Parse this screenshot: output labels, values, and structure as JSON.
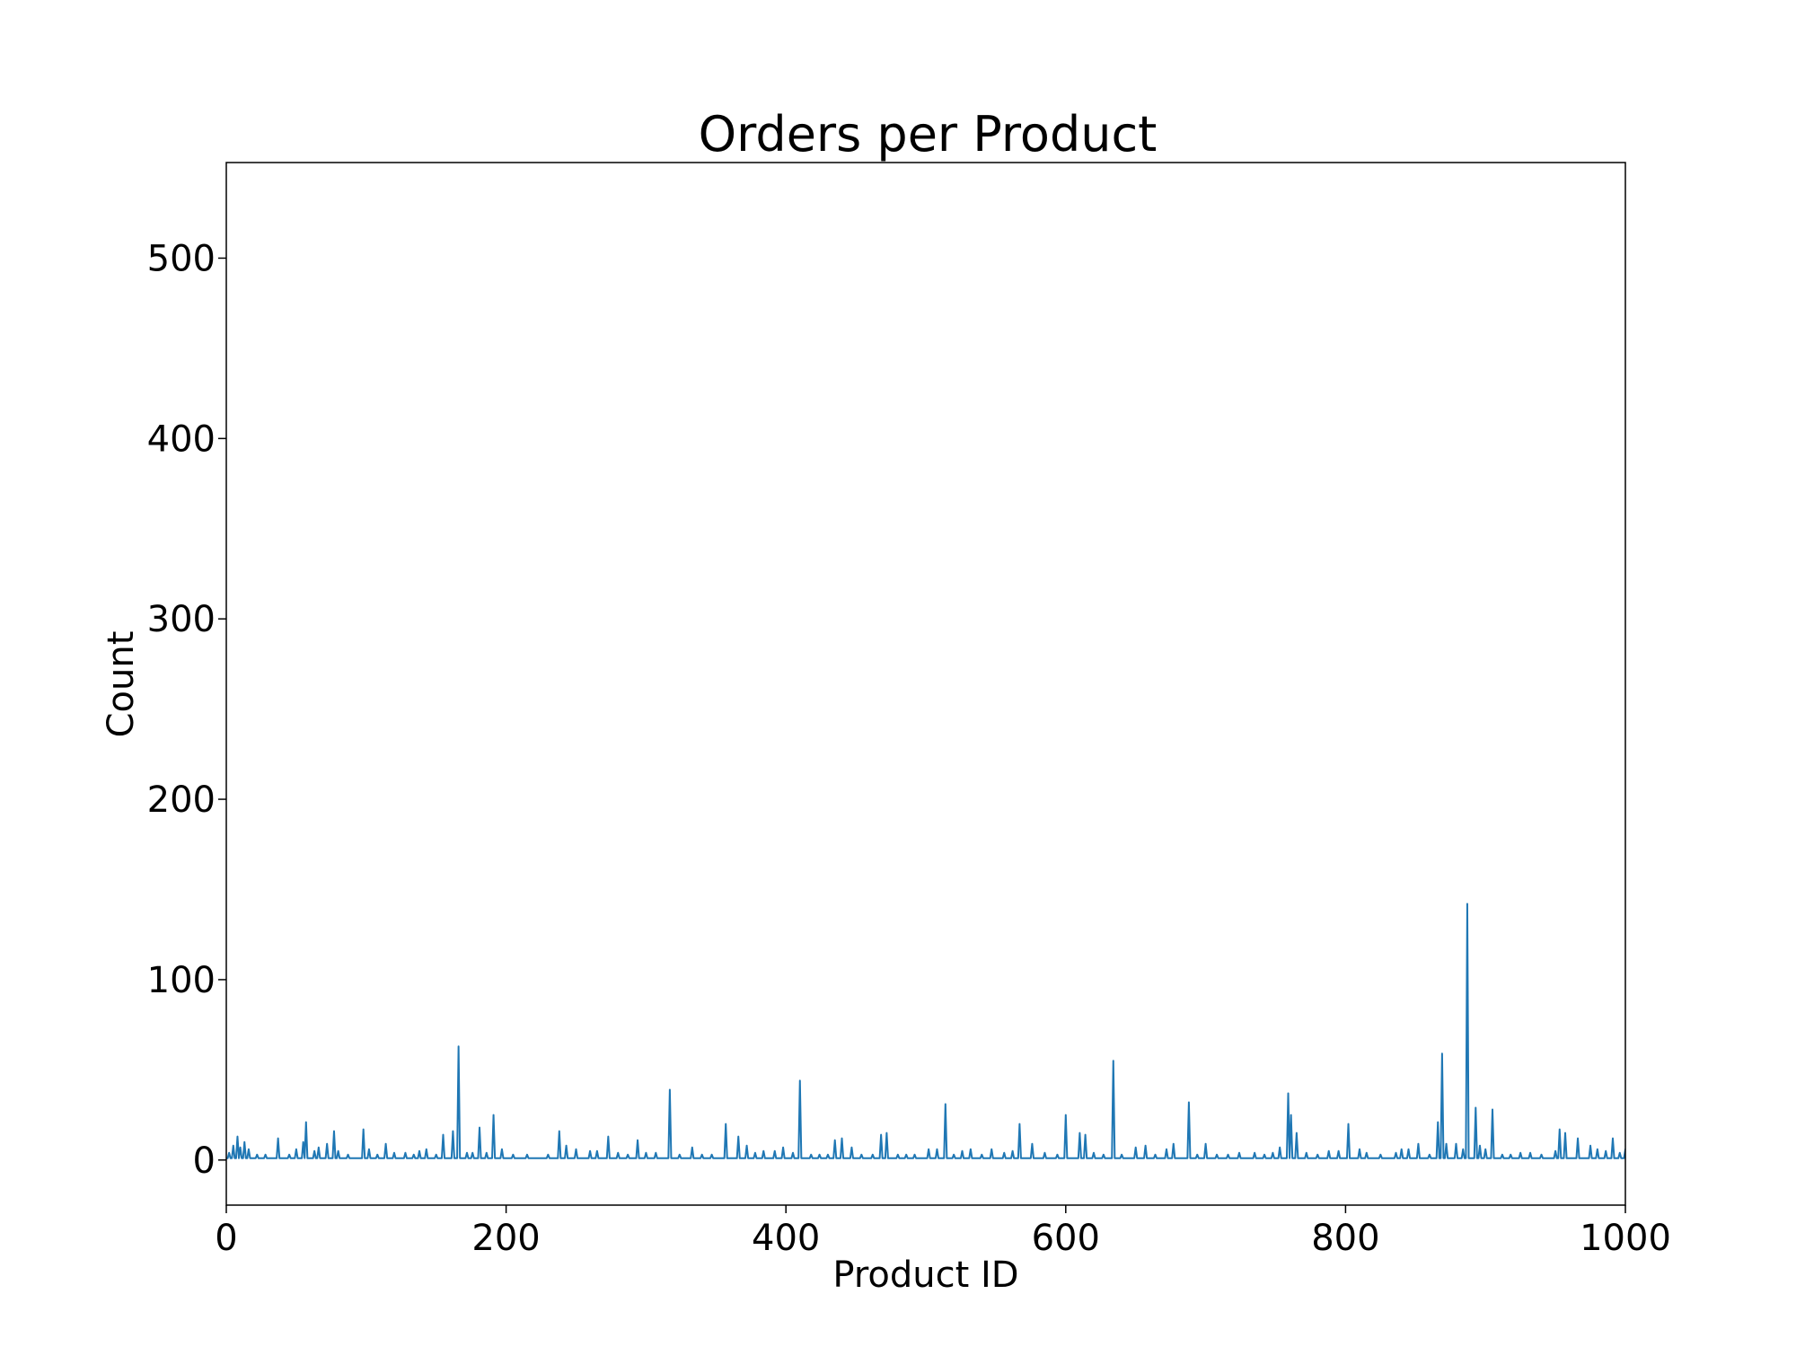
{
  "chart_data": {
    "type": "line",
    "title": "Orders per Product",
    "xlabel": "Product ID",
    "ylabel": "Count",
    "xlim": [
      0,
      1000
    ],
    "ylim": [
      -25,
      553
    ],
    "xticks": [
      0,
      200,
      400,
      600,
      800,
      1000
    ],
    "yticks": [
      0,
      100,
      200,
      300,
      400,
      500
    ],
    "grid": false,
    "series": [
      {
        "color": "#1f77b4",
        "baseline": 1,
        "spikes": [
          [
            2,
            4
          ],
          [
            5,
            8
          ],
          [
            8,
            13
          ],
          [
            10,
            7
          ],
          [
            13,
            10
          ],
          [
            16,
            6
          ],
          [
            22,
            3
          ],
          [
            28,
            3
          ],
          [
            37,
            12
          ],
          [
            45,
            3
          ],
          [
            50,
            6
          ],
          [
            55,
            10
          ],
          [
            57,
            21
          ],
          [
            63,
            5
          ],
          [
            66,
            7
          ],
          [
            72,
            9
          ],
          [
            77,
            16
          ],
          [
            80,
            5
          ],
          [
            87,
            3
          ],
          [
            98,
            17
          ],
          [
            102,
            6
          ],
          [
            108,
            3
          ],
          [
            114,
            9
          ],
          [
            120,
            4
          ],
          [
            128,
            4
          ],
          [
            134,
            3
          ],
          [
            138,
            5
          ],
          [
            143,
            6
          ],
          [
            150,
            3
          ],
          [
            155,
            14
          ],
          [
            162,
            16
          ],
          [
            166,
            63
          ],
          [
            172,
            4
          ],
          [
            176,
            4
          ],
          [
            181,
            18
          ],
          [
            186,
            4
          ],
          [
            191,
            25
          ],
          [
            197,
            6
          ],
          [
            205,
            3
          ],
          [
            215,
            3
          ],
          [
            230,
            3
          ],
          [
            238,
            16
          ],
          [
            243,
            8
          ],
          [
            250,
            6
          ],
          [
            260,
            5
          ],
          [
            265,
            5
          ],
          [
            273,
            13
          ],
          [
            280,
            4
          ],
          [
            287,
            3
          ],
          [
            294,
            11
          ],
          [
            300,
            4
          ],
          [
            307,
            4
          ],
          [
            317,
            39
          ],
          [
            324,
            3
          ],
          [
            333,
            7
          ],
          [
            340,
            3
          ],
          [
            347,
            3
          ],
          [
            357,
            20
          ],
          [
            366,
            13
          ],
          [
            372,
            8
          ],
          [
            378,
            4
          ],
          [
            384,
            5
          ],
          [
            392,
            5
          ],
          [
            398,
            7
          ],
          [
            405,
            4
          ],
          [
            410,
            44
          ],
          [
            418,
            3
          ],
          [
            424,
            3
          ],
          [
            430,
            3
          ],
          [
            435,
            11
          ],
          [
            440,
            12
          ],
          [
            447,
            7
          ],
          [
            454,
            3
          ],
          [
            462,
            3
          ],
          [
            468,
            14
          ],
          [
            472,
            15
          ],
          [
            480,
            3
          ],
          [
            486,
            3
          ],
          [
            492,
            3
          ],
          [
            502,
            6
          ],
          [
            508,
            6
          ],
          [
            514,
            31
          ],
          [
            520,
            3
          ],
          [
            526,
            5
          ],
          [
            532,
            6
          ],
          [
            540,
            3
          ],
          [
            547,
            6
          ],
          [
            556,
            4
          ],
          [
            562,
            5
          ],
          [
            567,
            20
          ],
          [
            576,
            9
          ],
          [
            585,
            4
          ],
          [
            594,
            3
          ],
          [
            600,
            25
          ],
          [
            610,
            15
          ],
          [
            614,
            14
          ],
          [
            620,
            4
          ],
          [
            627,
            3
          ],
          [
            634,
            55
          ],
          [
            640,
            3
          ],
          [
            650,
            7
          ],
          [
            657,
            8
          ],
          [
            664,
            3
          ],
          [
            672,
            6
          ],
          [
            677,
            9
          ],
          [
            688,
            32
          ],
          [
            694,
            3
          ],
          [
            700,
            9
          ],
          [
            708,
            3
          ],
          [
            716,
            3
          ],
          [
            724,
            4
          ],
          [
            735,
            4
          ],
          [
            742,
            3
          ],
          [
            748,
            4
          ],
          [
            753,
            7
          ],
          [
            759,
            37
          ],
          [
            761,
            25
          ],
          [
            765,
            15
          ],
          [
            772,
            4
          ],
          [
            780,
            3
          ],
          [
            788,
            5
          ],
          [
            795,
            5
          ],
          [
            802,
            20
          ],
          [
            810,
            6
          ],
          [
            815,
            4
          ],
          [
            825,
            3
          ],
          [
            836,
            4
          ],
          [
            840,
            6
          ],
          [
            845,
            6
          ],
          [
            852,
            9
          ],
          [
            860,
            3
          ],
          [
            866,
            21
          ],
          [
            869,
            59
          ],
          [
            872,
            9
          ],
          [
            879,
            9
          ],
          [
            884,
            6
          ],
          [
            887,
            142
          ],
          [
            893,
            29
          ],
          [
            896,
            8
          ],
          [
            900,
            6
          ],
          [
            905,
            28
          ],
          [
            912,
            3
          ],
          [
            918,
            3
          ],
          [
            925,
            4
          ],
          [
            932,
            4
          ],
          [
            940,
            3
          ],
          [
            950,
            5
          ],
          [
            953,
            17
          ],
          [
            957,
            15
          ],
          [
            966,
            12
          ],
          [
            975,
            8
          ],
          [
            980,
            6
          ],
          [
            986,
            5
          ],
          [
            991,
            12
          ],
          [
            996,
            4
          ],
          [
            1000,
            6
          ]
        ]
      }
    ]
  }
}
